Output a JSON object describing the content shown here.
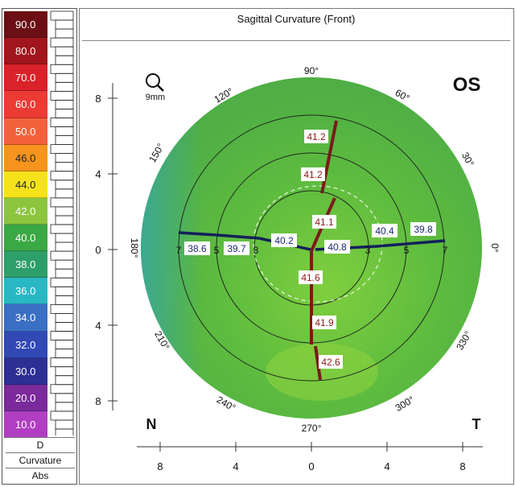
{
  "map": {
    "title": "Sagittal Curvature (Front)",
    "eye": "OS",
    "magnifier_label": "9mm",
    "nasal_label": "N",
    "temporal_label": "T",
    "angles": [
      "90°",
      "60°",
      "30°",
      "0°",
      "330°",
      "300°",
      "270°",
      "240°",
      "210°",
      "180°",
      "150°",
      "120°"
    ],
    "y_ticks": [
      "8",
      "4",
      "0",
      "4",
      "8"
    ],
    "x_ticks": [
      "8",
      "4",
      "0",
      "4",
      "8"
    ],
    "ring_numbers": [
      "7",
      "5",
      "3",
      "3",
      "5",
      "7"
    ],
    "values": {
      "sup_outer": "41.2",
      "sup_mid": "41.2",
      "sup_inner": "41.1",
      "inf_inner": "41.6",
      "inf_mid": "41.9",
      "inf_outer": "42.6",
      "nasal_outer": "38.6",
      "nasal_mid": "39.7",
      "nasal_inner": "40.2",
      "temp_inner": "40.8",
      "temp_mid": "40.4",
      "temp_outer": "39.8"
    }
  },
  "legend": {
    "levels": [
      {
        "label": "90.0",
        "color": "#6b0f14"
      },
      {
        "label": "80.0",
        "color": "#a1151c"
      },
      {
        "label": "70.0",
        "color": "#d9222a"
      },
      {
        "label": "60.0",
        "color": "#ec3a34"
      },
      {
        "label": "50.0",
        "color": "#f2613c"
      },
      {
        "label": "46.0",
        "color": "#f7941d"
      },
      {
        "label": "44.0",
        "color": "#f5e21a"
      },
      {
        "label": "42.0",
        "color": "#8cc63f"
      },
      {
        "label": "40.0",
        "color": "#3aa845"
      },
      {
        "label": "38.0",
        "color": "#2e9e6a"
      },
      {
        "label": "36.0",
        "color": "#29b7c4"
      },
      {
        "label": "34.0",
        "color": "#3a6fc4"
      },
      {
        "label": "32.0",
        "color": "#3148b5"
      },
      {
        "label": "30.0",
        "color": "#2d2f93"
      },
      {
        "label": "20.0",
        "color": "#7a2a9a"
      },
      {
        "label": "10.0",
        "color": "#b13ec2"
      }
    ],
    "unit": "D",
    "type": "Curvature",
    "mode": "Abs"
  },
  "colors": {
    "map_green": "#5dbb3f",
    "map_green_light": "#7fcf3e",
    "map_teal_edge": "#3aa7a0",
    "meridian_red": "#7a1a1a",
    "meridian_navy": "#14205a",
    "value_red": "#8a1b1b",
    "value_navy": "#1c2a6e"
  }
}
